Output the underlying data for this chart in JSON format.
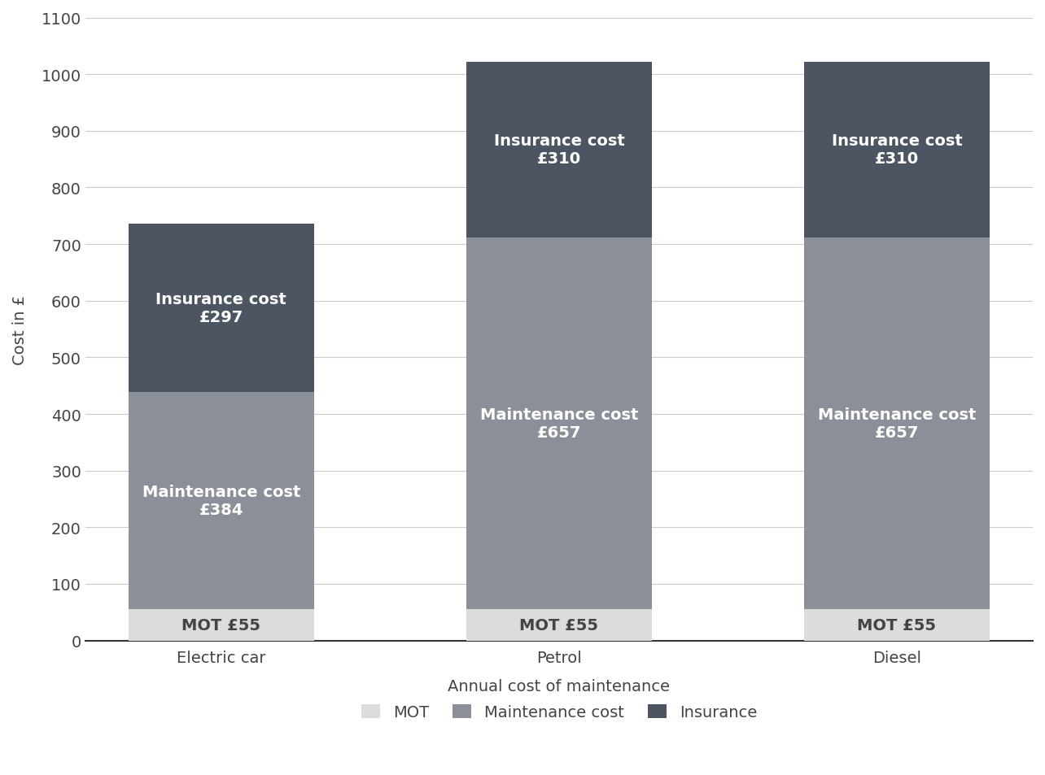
{
  "categories": [
    "Electric car",
    "Petrol",
    "Diesel"
  ],
  "mot": [
    55,
    55,
    55
  ],
  "maintenance": [
    384,
    657,
    657
  ],
  "insurance": [
    297,
    310,
    310
  ],
  "mot_color": "#dcdcdc",
  "maintenance_color": "#8b9098",
  "insurance_color": "#4d5562",
  "background_color": "#ffffff",
  "xlabel": "Annual cost of maintenance",
  "ylabel": "Cost in £",
  "ylim": [
    0,
    1100
  ],
  "yticks": [
    0,
    100,
    200,
    300,
    400,
    500,
    600,
    700,
    800,
    900,
    1000,
    1100
  ],
  "bar_width": 0.55,
  "legend_labels": [
    "MOT",
    "Maintenance cost",
    "Insurance"
  ],
  "label_fontsize": 14,
  "tick_fontsize": 14,
  "annotation_fontsize": 14
}
